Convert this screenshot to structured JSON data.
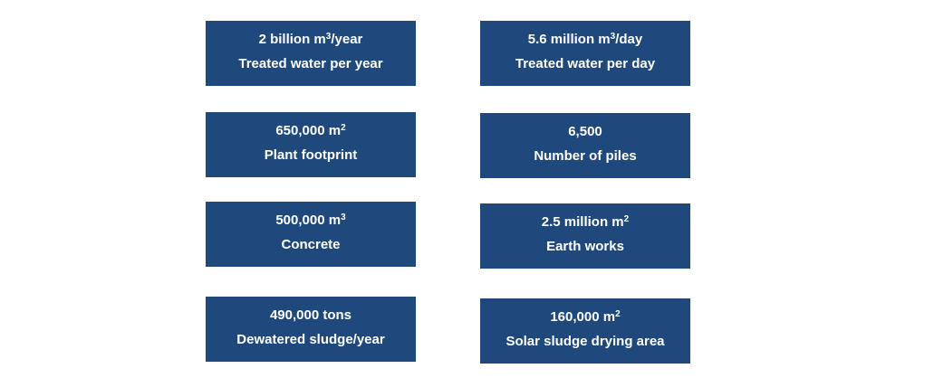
{
  "cards": [
    {
      "value": "2 billion m",
      "sup": "3",
      "suffix": "/year",
      "label": "Treated water per year"
    },
    {
      "value": "5.6 million m",
      "sup": "3",
      "suffix": "/day",
      "label": "Treated water per day"
    },
    {
      "value": "650,000 m",
      "sup": "2",
      "label": "Plant footprint"
    },
    {
      "value": "6,500",
      "label": "Number of piles"
    },
    {
      "value": "500,000 m",
      "sup": "3",
      "label": "Concrete"
    },
    {
      "value": "2.5 million m",
      "sup": "2",
      "label": "Earth works"
    },
    {
      "value": "490,000 tons",
      "label": "Dewatered sludge/year"
    },
    {
      "value": "160,000 m",
      "sup": "2",
      "label": "Solar sludge drying area"
    }
  ]
}
